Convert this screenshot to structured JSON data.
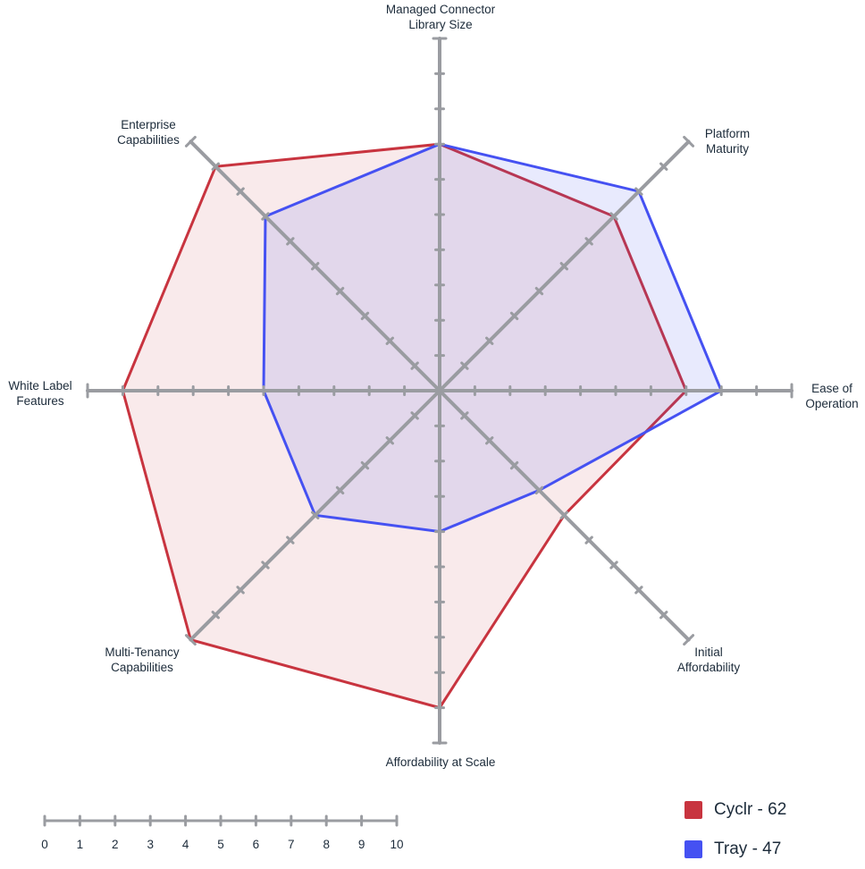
{
  "chart_data": {
    "type": "radar",
    "range": [
      0,
      10
    ],
    "axes": [
      "Managed Connector\nLibrary Size",
      "Platform\nMaturity",
      "Ease of\nOperation",
      "Initial\nAffordability",
      "Affordability at Scale",
      "Multi-Tenancy\nCapabilities",
      "White Label\nFeatures",
      "Enterprise\nCapabilities"
    ],
    "series": [
      {
        "name": "Cyclr - 62",
        "color": "#c8343f",
        "fill": "rgba(200,52,63,0.10)",
        "values": [
          7,
          7,
          7,
          5,
          9,
          10,
          9,
          9
        ]
      },
      {
        "name": "Tray - 47",
        "color": "#4551f2",
        "fill": "rgba(69,81,242,0.12)",
        "values": [
          7,
          8,
          8,
          4,
          4,
          5,
          5,
          7
        ]
      }
    ],
    "scale_ticks": [
      "0",
      "1",
      "2",
      "3",
      "4",
      "5",
      "6",
      "7",
      "8",
      "9",
      "10"
    ]
  }
}
